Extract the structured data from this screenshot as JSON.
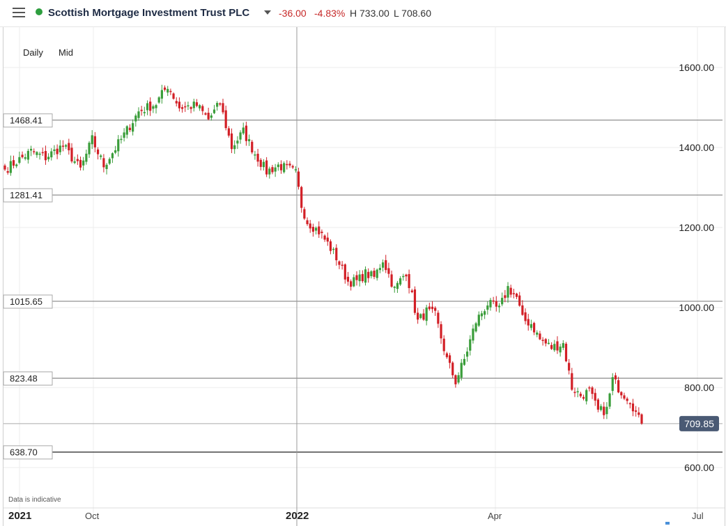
{
  "header": {
    "menu_icon": "hamburger-menu-icon",
    "status_color": "#2e9e3f",
    "title": "Scottish Mortgage Investment Trust PLC",
    "change_abs": "-36.00",
    "change_pct": "-4.83%",
    "high": "H 733.00",
    "low": "L 708.60",
    "negative_color": "#c62828"
  },
  "toolbar": {
    "interval": "Daily",
    "price_type": "Mid"
  },
  "footer": {
    "note": "Data is indicative"
  },
  "colors": {
    "up": "#3a9d3a",
    "down": "#d21f26",
    "price_tag": "#4a5a74"
  },
  "chart_data": {
    "type": "candlestick",
    "title": "",
    "ylim": [
      520,
      1665
    ],
    "y_ticks": [
      "1600.00",
      "1400.00",
      "1200.00",
      "1000.00",
      "800.00",
      "600.00"
    ],
    "x_ticks": [
      "2021",
      "Oct",
      "2022",
      "Apr",
      "Jul"
    ],
    "horizontal_levels": [
      "1468.41",
      "1281.41",
      "1015.65",
      "823.48",
      "638.70"
    ],
    "last_price": "709.85",
    "crosshair_at": "2022",
    "anchors": [
      [
        0,
        1345
      ],
      [
        9,
        1390
      ],
      [
        14,
        1375
      ],
      [
        20,
        1405
      ],
      [
        26,
        1345
      ],
      [
        30,
        1420
      ],
      [
        34,
        1355
      ],
      [
        40,
        1420
      ],
      [
        46,
        1490
      ],
      [
        52,
        1510
      ],
      [
        56,
        1555
      ],
      [
        60,
        1500
      ],
      [
        66,
        1505
      ],
      [
        70,
        1470
      ],
      [
        74,
        1510
      ],
      [
        78,
        1400
      ],
      [
        82,
        1440
      ],
      [
        86,
        1385
      ],
      [
        90,
        1340
      ],
      [
        94,
        1355
      ],
      [
        98,
        1345
      ],
      [
        100,
        1335
      ],
      [
        102,
        1255
      ],
      [
        104,
        1215
      ],
      [
        108,
        1190
      ],
      [
        111,
        1160
      ],
      [
        114,
        1125
      ],
      [
        118,
        1065
      ],
      [
        121,
        1065
      ],
      [
        124,
        1085
      ],
      [
        127,
        1075
      ],
      [
        130,
        1120
      ],
      [
        134,
        1045
      ],
      [
        138,
        1090
      ],
      [
        142,
        965
      ],
      [
        145,
        990
      ],
      [
        148,
        980
      ],
      [
        152,
        870
      ],
      [
        155,
        815
      ],
      [
        158,
        870
      ],
      [
        162,
        965
      ],
      [
        166,
        1010
      ],
      [
        170,
        995
      ],
      [
        173,
        1050
      ],
      [
        176,
        1025
      ],
      [
        178,
        970
      ],
      [
        181,
        960
      ],
      [
        184,
        920
      ],
      [
        188,
        900
      ],
      [
        192,
        910
      ],
      [
        195,
        800
      ],
      [
        198,
        780
      ],
      [
        201,
        790
      ],
      [
        204,
        740
      ],
      [
        207,
        745
      ],
      [
        209,
        820
      ],
      [
        212,
        790
      ],
      [
        215,
        770
      ],
      [
        218,
        720
      ],
      [
        219,
        709.85
      ]
    ]
  }
}
